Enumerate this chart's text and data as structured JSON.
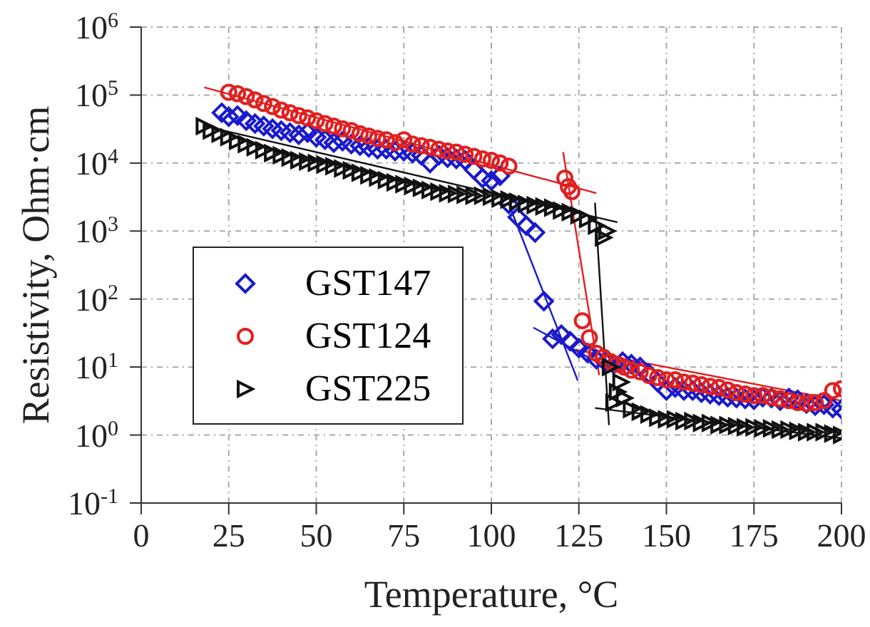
{
  "chart_data": {
    "type": "scatter",
    "xlabel": "Temperature, °C",
    "ylabel": "Resistivity, Ohm·cm",
    "xlim": [
      0,
      200
    ],
    "xticks": [
      0,
      25,
      50,
      75,
      100,
      125,
      150,
      175,
      200
    ],
    "ylim": [
      0.1,
      1000000
    ],
    "log": "y",
    "yticks": [
      {
        "value": 0.1,
        "label": "10$^{-1}$"
      },
      {
        "value": 1,
        "label": "10$^{0}$"
      },
      {
        "value": 10,
        "label": "10$^{1}$"
      },
      {
        "value": 100,
        "label": "10$^{2}$"
      },
      {
        "value": 1000,
        "label": "10$^{3}$"
      },
      {
        "value": 10000,
        "label": "10$^{4}$"
      },
      {
        "value": 100000,
        "label": "10$^{5}$"
      },
      {
        "value": 1000000,
        "label": "10$^{6}$"
      }
    ],
    "grid": true,
    "legend": "left",
    "series": [
      {
        "name": "GST147",
        "type": "scatter",
        "marker": "diamond",
        "color": "#1a1acc",
        "x": [
          23,
          25,
          27.5,
          30,
          32.5,
          35,
          37.5,
          40,
          42.5,
          45,
          47.5,
          50,
          52.5,
          55,
          57.5,
          60,
          62.5,
          65,
          67.5,
          70,
          72.5,
          75,
          77.5,
          80,
          82.5,
          85,
          87.5,
          90,
          92.5,
          95,
          97.5,
          100,
          102.5,
          105,
          107.5,
          110,
          112.5,
          115,
          117.5,
          120,
          122.5,
          125,
          127.5,
          130,
          132.5,
          135,
          137.5,
          140,
          142.5,
          145,
          147.5,
          150,
          152.5,
          155,
          157.5,
          160,
          162.5,
          165,
          167.5,
          170,
          172.5,
          175,
          177.5,
          180,
          182.5,
          185,
          187.5,
          190,
          192.5,
          195,
          197.5,
          200
        ],
        "values": [
          55000,
          48000,
          50000,
          42000,
          38000,
          35000,
          32000,
          30000,
          28000,
          26000,
          28000,
          24000,
          22000,
          20000,
          21000,
          19000,
          18000,
          17000,
          16000,
          16000,
          15000,
          15000,
          14000,
          13000,
          10000,
          13000,
          12000,
          11500,
          11000,
          8000,
          6000,
          5500,
          6500,
          2500,
          1600,
          1200,
          950,
          93,
          26,
          30,
          24,
          19,
          16,
          13,
          12,
          11,
          12,
          11,
          10,
          8,
          6,
          4.5,
          5,
          4.5,
          4.5,
          4.2,
          4,
          3.8,
          3.6,
          3.5,
          3.4,
          3.3,
          3.6,
          3.5,
          3.2,
          3.5,
          3.3,
          2.9,
          2.7,
          2.8,
          2.5,
          2.4
        ]
      },
      {
        "name": "GST124",
        "type": "scatter",
        "marker": "circle",
        "color": "#e02020",
        "x": [
          25,
          27.5,
          30,
          32.5,
          35,
          37.5,
          40,
          42.5,
          45,
          47.5,
          50,
          52.5,
          55,
          57.5,
          60,
          62.5,
          65,
          67.5,
          70,
          72.5,
          75,
          77.5,
          80,
          82.5,
          85,
          87.5,
          90,
          92.5,
          95,
          97.5,
          100,
          102.5,
          105,
          121,
          122,
          123,
          126,
          128,
          130,
          132,
          134,
          136,
          138,
          140,
          142.5,
          145,
          147.5,
          150,
          152.5,
          155,
          157.5,
          160,
          162.5,
          165,
          167.5,
          170,
          172.5,
          175,
          177.5,
          180,
          182.5,
          185,
          187.5,
          190,
          192.5,
          195,
          197.5,
          200
        ],
        "values": [
          110000,
          105000,
          95000,
          85000,
          75000,
          68000,
          60000,
          55000,
          50000,
          46000,
          42000,
          38000,
          35000,
          32000,
          30000,
          27000,
          25000,
          23000,
          22000,
          20000,
          22000,
          19000,
          18000,
          17000,
          16000,
          15000,
          14500,
          13500,
          12500,
          11500,
          11000,
          10000,
          9000,
          6000,
          4500,
          3800,
          48,
          27,
          16,
          14,
          12,
          11,
          10,
          9,
          8.5,
          7.5,
          7,
          6.5,
          6.5,
          6,
          5.8,
          5.5,
          5.2,
          5,
          4.6,
          4.2,
          4,
          3.8,
          3.8,
          3.6,
          3.4,
          3.2,
          3,
          2.9,
          3,
          3.2,
          4.5,
          4.8
        ]
      },
      {
        "name": "GST225",
        "type": "scatter",
        "marker": "triangle",
        "color": "#111111",
        "x": [
          18,
          20,
          22.5,
          25,
          27.5,
          30,
          32.5,
          35,
          37.5,
          40,
          42.5,
          45,
          47.5,
          50,
          52.5,
          55,
          57.5,
          60,
          62.5,
          65,
          67.5,
          70,
          72.5,
          75,
          77.5,
          80,
          82.5,
          85,
          87.5,
          90,
          92.5,
          95,
          97.5,
          100,
          102.5,
          105,
          107.5,
          110,
          112.5,
          115,
          117.5,
          120,
          122.5,
          125,
          127.5,
          130,
          132,
          133,
          134,
          135,
          136,
          137,
          138,
          140,
          142.5,
          145,
          147.5,
          150,
          152.5,
          155,
          157.5,
          160,
          162.5,
          165,
          167.5,
          170,
          172.5,
          175,
          177.5,
          180,
          182.5,
          185,
          187.5,
          190,
          192.5,
          195,
          197.5,
          200
        ],
        "values": [
          35000,
          30000,
          27000,
          24000,
          21000,
          19000,
          17000,
          15500,
          14000,
          13000,
          12000,
          11000,
          10500,
          10000,
          9500,
          9000,
          8300,
          7800,
          7200,
          6600,
          6100,
          5600,
          5200,
          4900,
          4600,
          4300,
          4000,
          3800,
          3600,
          3500,
          3400,
          3300,
          3300,
          3200,
          3000,
          2900,
          2700,
          2500,
          2400,
          2300,
          2200,
          2000,
          1900,
          1700,
          1500,
          1200,
          800,
          1000,
          10,
          3,
          4.3,
          6,
          3.5,
          2.4,
          2.2,
          2,
          1.8,
          1.7,
          1.7,
          1.6,
          1.6,
          1.5,
          1.5,
          1.4,
          1.4,
          1.35,
          1.3,
          1.3,
          1.25,
          1.25,
          1.2,
          1.2,
          1.15,
          1.1,
          1.1,
          1.1,
          1.05,
          1
        ]
      },
      {
        "type": "line",
        "marker": "none",
        "color": "#e02020",
        "x": [
          18,
          130
        ],
        "values": [
          130000,
          3600
        ]
      },
      {
        "type": "line",
        "marker": "none",
        "color": "#e02020",
        "x": [
          120.5,
          130.8
        ],
        "values": [
          14500,
          7.6
        ]
      },
      {
        "type": "line",
        "marker": "none",
        "color": "#e02020",
        "x": [
          124,
          200
        ],
        "values": [
          18,
          3.2
        ]
      },
      {
        "type": "line",
        "marker": "none",
        "color": "#1a1acc",
        "x": [
          105,
          124.7
        ],
        "values": [
          2500,
          6.3
        ]
      },
      {
        "type": "line",
        "marker": "none",
        "color": "#1a1acc",
        "x": [
          112,
          130
        ],
        "values": [
          38,
          12
        ]
      },
      {
        "type": "line",
        "marker": "none",
        "color": "#111111",
        "x": [
          18,
          136
        ],
        "values": [
          35000,
          1350
        ]
      },
      {
        "type": "line",
        "marker": "none",
        "color": "#111111",
        "x": [
          129.6,
          133.6
        ],
        "values": [
          2600,
          1.4
        ]
      },
      {
        "type": "line",
        "marker": "none",
        "color": "#111111",
        "x": [
          129.6,
          200
        ],
        "values": [
          2.5,
          0.9
        ]
      }
    ]
  }
}
